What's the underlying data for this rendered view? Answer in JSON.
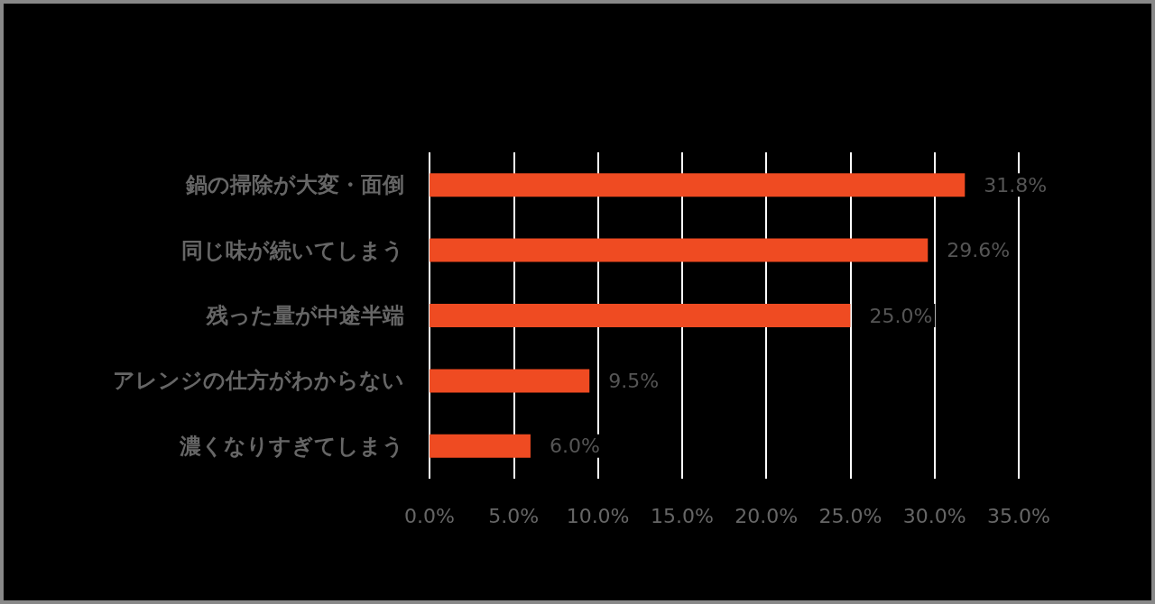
{
  "chart_data": {
    "type": "bar",
    "orientation": "horizontal",
    "categories": [
      "鍋の掃除が大変・面倒",
      "同じ味が続いてしまう",
      "残った量が中途半端",
      "アレンジの仕方がわからない",
      "濃くなりすぎてしまう"
    ],
    "values": [
      31.8,
      29.6,
      25.0,
      9.5,
      6.0
    ],
    "value_labels": [
      "31.8%",
      "29.6%",
      "25.0%",
      "9.5%",
      "6.0%"
    ],
    "color": "#ef4b22",
    "xlim": [
      0,
      35
    ],
    "xticks": [
      {
        "value": 0,
        "label": "0.0%"
      },
      {
        "value": 5,
        "label": "5.0%"
      },
      {
        "value": 10,
        "label": "10.0%"
      },
      {
        "value": 15,
        "label": "15.0%"
      },
      {
        "value": 20,
        "label": "20.0%"
      },
      {
        "value": 25,
        "label": "25.0%"
      },
      {
        "value": 30,
        "label": "30.0%"
      },
      {
        "value": 35,
        "label": "35.0%"
      }
    ],
    "grid": "x"
  }
}
